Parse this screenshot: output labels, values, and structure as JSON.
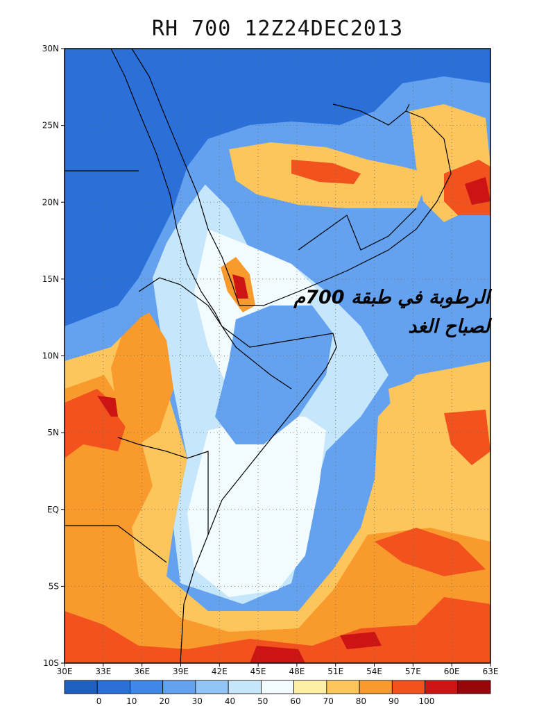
{
  "title": "RH 700 12Z24DEC2013",
  "overlay_text": {
    "line1": "الرطوبة في طبقة 700م",
    "line2": "لصباح الغد"
  },
  "y_axis": {
    "labels": [
      "30N",
      "25N",
      "20N",
      "15N",
      "10N",
      "5N",
      "EQ",
      "5S",
      "10S"
    ]
  },
  "x_axis": {
    "labels": [
      "30E",
      "33E",
      "36E",
      "39E",
      "42E",
      "45E",
      "48E",
      "51E",
      "54E",
      "57E",
      "60E",
      "63E"
    ]
  },
  "colorbar": {
    "levels": [
      "0",
      "10",
      "20",
      "30",
      "40",
      "50",
      "60",
      "70",
      "80",
      "90",
      "100"
    ],
    "colors": [
      "#1f5fbf",
      "#2a70d8",
      "#3f88e8",
      "#64a2ef",
      "#93c4f6",
      "#c6e6fb",
      "#f2fbfd",
      "#fdf0a6",
      "#fdc65c",
      "#f99a2d",
      "#f1521e",
      "#cc1414",
      "#98060c"
    ]
  },
  "fields": {
    "dry": "#2a70d8",
    "med_dry": "#64a2ef",
    "light": "#c6e6fb",
    "neutral": "#f2fbfd",
    "moist": "#fdc65c",
    "wet": "#f99a2d",
    "very_wet": "#f1521e",
    "saturated": "#cc1414"
  }
}
